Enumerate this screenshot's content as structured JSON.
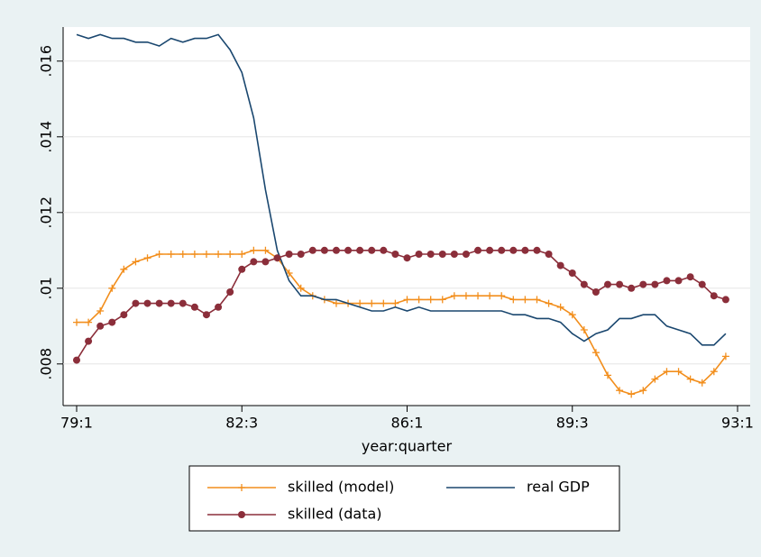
{
  "chart_data": {
    "type": "line",
    "x_label": "year:quarter",
    "categories": [
      "79:1",
      null,
      null,
      null,
      null,
      null,
      null,
      null,
      null,
      null,
      null,
      null,
      null,
      null,
      "82:3",
      null,
      null,
      null,
      null,
      null,
      null,
      null,
      null,
      null,
      null,
      null,
      null,
      null,
      "86:1",
      null,
      null,
      null,
      null,
      null,
      null,
      null,
      null,
      null,
      null,
      null,
      null,
      null,
      "89:3",
      null,
      null,
      null,
      null,
      null,
      null,
      null,
      null,
      null,
      null,
      null,
      null,
      null,
      "93:1"
    ],
    "ylim": [
      0.0069,
      0.0169
    ],
    "yticks": [
      {
        "value": 0.008,
        "label": ".008"
      },
      {
        "value": 0.01,
        "label": ".01"
      },
      {
        "value": 0.012,
        "label": ".012"
      },
      {
        "value": 0.014,
        "label": ".014"
      },
      {
        "value": 0.016,
        "label": ".016"
      }
    ],
    "grid": true,
    "legend": "bottom",
    "series": [
      {
        "name": "skilled (model)",
        "color": "#f28e1c",
        "marker": "plus",
        "values": [
          0.0091,
          0.0091,
          0.0094,
          0.01,
          0.0105,
          0.0107,
          0.0108,
          0.0109,
          0.0109,
          0.0109,
          0.0109,
          0.0109,
          0.0109,
          0.0109,
          0.0109,
          0.011,
          0.011,
          0.0108,
          0.0104,
          0.01,
          0.0098,
          0.0097,
          0.0096,
          0.0096,
          0.0096,
          0.0096,
          0.0096,
          0.0096,
          0.0097,
          0.0097,
          0.0097,
          0.0097,
          0.0098,
          0.0098,
          0.0098,
          0.0098,
          0.0098,
          0.0097,
          0.0097,
          0.0097,
          0.0096,
          0.0095,
          0.0093,
          0.0089,
          0.0083,
          0.0077,
          0.0073,
          0.0072,
          0.0073,
          0.0076,
          0.0078,
          0.0078,
          0.0076,
          0.0075,
          0.0078,
          0.0082,
          null
        ]
      },
      {
        "name": "real GDP",
        "color": "#1a476f",
        "marker": "none",
        "values": [
          0.0167,
          0.0166,
          0.0167,
          0.0166,
          0.0166,
          0.0165,
          0.0165,
          0.0164,
          0.0166,
          0.0165,
          0.0166,
          0.0166,
          0.0167,
          0.0163,
          0.0157,
          0.0145,
          0.0126,
          0.011,
          0.0102,
          0.0098,
          0.0098,
          0.0097,
          0.0097,
          0.0096,
          0.0095,
          0.0094,
          0.0094,
          0.0095,
          0.0094,
          0.0095,
          0.0094,
          0.0094,
          0.0094,
          0.0094,
          0.0094,
          0.0094,
          0.0094,
          0.0093,
          0.0093,
          0.0092,
          0.0092,
          0.0091,
          0.0088,
          0.0086,
          0.0088,
          0.0089,
          0.0092,
          0.0092,
          0.0093,
          0.0093,
          0.009,
          0.0089,
          0.0088,
          0.0085,
          0.0085,
          0.0088,
          null
        ]
      },
      {
        "name": "skilled (data)",
        "color": "#8b2e3a",
        "marker": "circle",
        "values": [
          0.0081,
          0.0086,
          0.009,
          0.0091,
          0.0093,
          0.0096,
          0.0096,
          0.0096,
          0.0096,
          0.0096,
          0.0095,
          0.0093,
          0.0095,
          0.0099,
          0.0105,
          0.0107,
          0.0107,
          0.0108,
          0.0109,
          0.0109,
          0.011,
          0.011,
          0.011,
          0.011,
          0.011,
          0.011,
          0.011,
          0.0109,
          0.0108,
          0.0109,
          0.0109,
          0.0109,
          0.0109,
          0.0109,
          0.011,
          0.011,
          0.011,
          0.011,
          0.011,
          0.011,
          0.0109,
          0.0106,
          0.0104,
          0.0101,
          0.0099,
          0.0101,
          0.0101,
          0.01,
          0.0101,
          0.0101,
          0.0102,
          0.0102,
          0.0103,
          0.0101,
          0.0098,
          0.0097,
          null
        ]
      }
    ]
  }
}
